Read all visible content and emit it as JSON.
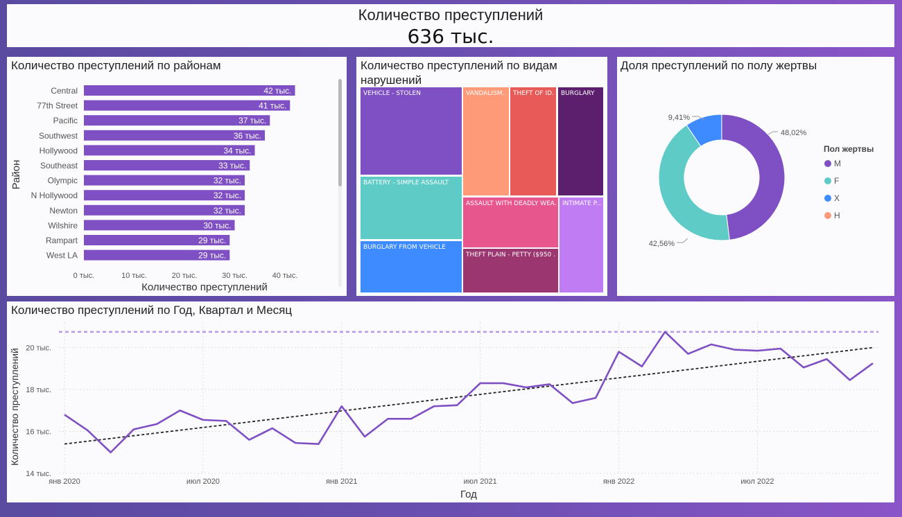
{
  "kpi": {
    "title": "Количество преступлений",
    "value": "636 тыс."
  },
  "colors": {
    "accent": "#7f4fc4",
    "tree": [
      "#7f4fc4",
      "#5fcbc6",
      "#3d8bff",
      "#ff9a78",
      "#e85a58",
      "#5b1f6e",
      "#e8568e",
      "#9c3670",
      "#c07cf2"
    ],
    "pie": [
      "#7f4fc4",
      "#5fcbc6",
      "#3d8bff",
      "#ff9a78"
    ],
    "trend": "#222222"
  },
  "chart_data": [
    {
      "type": "bar",
      "title": "Количество преступлений по районам",
      "xlabel": "Количество преступлений",
      "ylabel": "Район",
      "categories": [
        "Central",
        "77th Street",
        "Pacific",
        "Southwest",
        "Hollywood",
        "Southeast",
        "Olympic",
        "N Hollywood",
        "Newton",
        "Wilshire",
        "Rampart",
        "West LA"
      ],
      "values": [
        42,
        41,
        37,
        36,
        34,
        33,
        32,
        32,
        32,
        30,
        29,
        29
      ],
      "data_labels": [
        "42 тыс.",
        "41 тыс.",
        "37 тыс.",
        "36 тыс.",
        "34 тыс.",
        "33 тыс.",
        "32 тыс.",
        "32 тыс.",
        "32 тыс.",
        "30 тыс.",
        "29 тыс.",
        "29 тыс."
      ],
      "xticks": [
        0,
        10,
        20,
        30,
        40
      ],
      "xtick_labels": [
        "0 тыс.",
        "10 тыс.",
        "20 тыс.",
        "30 тыс.",
        "40 тыс."
      ],
      "xlim": [
        0,
        45
      ]
    },
    {
      "type": "treemap",
      "title": "Количество преступлений по видам нарушений",
      "labels": [
        "VEHICLE - STOLEN",
        "BATTERY - SIMPLE ASSAULT",
        "BURGLARY FROM VEHICLE",
        "VANDALISM...",
        "THEFT OF ID...",
        "BURGLARY",
        "ASSAULT WITH DEADLY WEA...",
        "THEFT PLAIN - PETTY ($950 ...",
        "INTIMATE P..."
      ]
    },
    {
      "type": "pie",
      "title": "Доля преступлений по полу жертвы",
      "legend_title": "Пол жертвы",
      "categories": [
        "M",
        "F",
        "X",
        "H"
      ],
      "values": [
        48.02,
        42.56,
        9.41,
        0.01
      ],
      "data_labels": [
        "48,02%",
        "42,56%",
        "9,41%",
        ""
      ]
    },
    {
      "type": "line",
      "title": "Количество преступлений по Год, Квартал и Месяц",
      "xlabel": "Год",
      "ylabel": "Количество преступлений",
      "x": [
        "2020-01",
        "2020-02",
        "2020-03",
        "2020-04",
        "2020-05",
        "2020-06",
        "2020-07",
        "2020-08",
        "2020-09",
        "2020-10",
        "2020-11",
        "2020-12",
        "2021-01",
        "2021-02",
        "2021-03",
        "2021-04",
        "2021-05",
        "2021-06",
        "2021-07",
        "2021-08",
        "2021-09",
        "2021-10",
        "2021-11",
        "2021-12",
        "2022-01",
        "2022-02",
        "2022-03",
        "2022-04",
        "2022-05",
        "2022-06",
        "2022-07",
        "2022-08",
        "2022-09",
        "2022-10",
        "2022-11",
        "2022-12"
      ],
      "values": [
        16.8,
        16.05,
        15.0,
        16.1,
        16.35,
        17.0,
        16.55,
        16.5,
        15.6,
        16.15,
        15.45,
        15.4,
        17.2,
        15.75,
        16.6,
        16.6,
        17.2,
        17.25,
        18.3,
        18.3,
        18.1,
        18.25,
        17.35,
        17.6,
        19.8,
        19.1,
        20.75,
        19.7,
        20.15,
        19.9,
        19.85,
        19.95,
        19.05,
        19.45,
        18.45,
        19.25
      ],
      "trend": [
        15.4,
        20.0
      ],
      "max_line": 20.75,
      "yticks": [
        14,
        16,
        18,
        20
      ],
      "ytick_labels": [
        "14 тыс.",
        "16 тыс.",
        "18 тыс.",
        "20 тыс."
      ],
      "ylim": [
        14,
        21.3
      ],
      "xtick_labels": [
        "янв 2020",
        "июл 2020",
        "янв 2021",
        "июл 2021",
        "янв 2022",
        "июл 2022"
      ]
    }
  ]
}
